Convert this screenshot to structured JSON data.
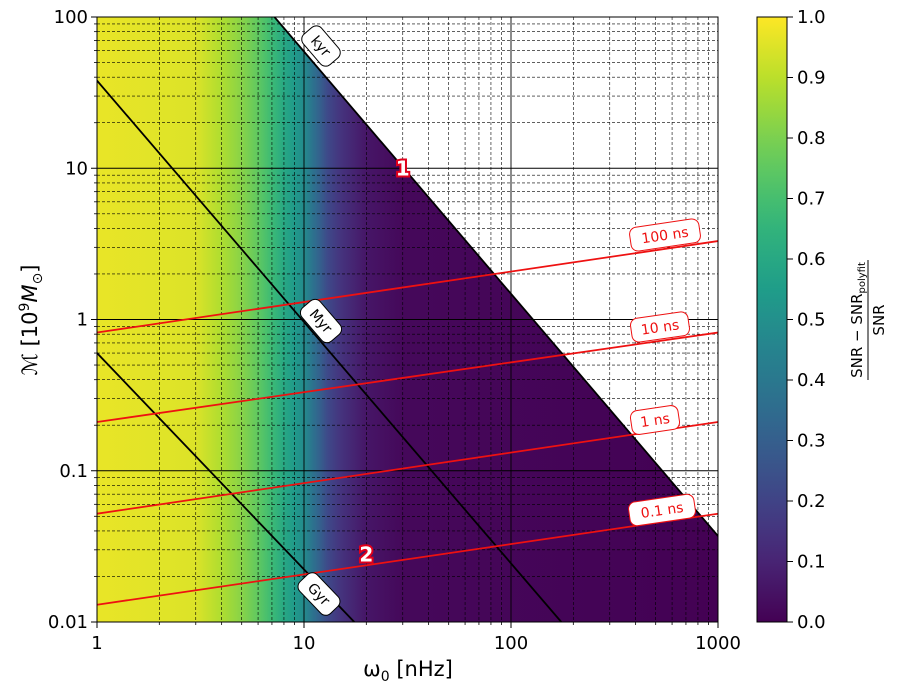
{
  "chart_data": {
    "type": "heatmap",
    "xlabel_parts": [
      "ω",
      "0",
      " [nHz]"
    ],
    "ylabel_parts": [
      "ℳ [10",
      "9",
      "M",
      "⊙",
      "]"
    ],
    "x_scale": "log",
    "y_scale": "log",
    "xlim": [
      1,
      1000
    ],
    "ylim": [
      0.01,
      100
    ],
    "x_ticks": [
      1,
      10,
      100,
      1000
    ],
    "x_tick_labels": [
      "1",
      "10",
      "100",
      "1000"
    ],
    "y_ticks": [
      0.01,
      0.1,
      1,
      10,
      100
    ],
    "y_tick_labels": [
      "0.01",
      "0.1",
      "1",
      "10",
      "100"
    ],
    "grid": true,
    "colorbar": {
      "label_main": "SNR − SNR",
      "label_sub": "polyfit",
      "label_den": "SNR",
      "ticks": [
        0.0,
        0.1,
        0.2,
        0.3,
        0.4,
        0.5,
        0.6,
        0.7,
        0.8,
        0.9,
        1.0
      ],
      "tick_labels": [
        "0.0",
        "0.1",
        "0.2",
        "0.3",
        "0.4",
        "0.5",
        "0.6",
        "0.7",
        "0.8",
        "0.9",
        "1.0"
      ],
      "colormap": "viridis"
    },
    "heatmap_profile": {
      "x": [
        1,
        3,
        4,
        5,
        6,
        7,
        8,
        9,
        10,
        11,
        12,
        13,
        15,
        20,
        30,
        1000
      ],
      "value": [
        0.97,
        0.95,
        0.88,
        0.82,
        0.75,
        0.68,
        0.6,
        0.54,
        0.48,
        0.38,
        0.3,
        0.22,
        0.15,
        0.06,
        0.02,
        0.0
      ]
    },
    "masked_region": "above kyr line (white)",
    "black_lines": [
      {
        "label": "kyr",
        "x": [
          7.2,
          1000
        ],
        "y": [
          100,
          0.037
        ]
      },
      {
        "label": "Myr",
        "x": [
          1,
          175
        ],
        "y": [
          38,
          0.01
        ]
      },
      {
        "label": "Gyr",
        "x": [
          1,
          17.5
        ],
        "y": [
          0.6,
          0.01
        ]
      }
    ],
    "red_lines": [
      {
        "label": "100 ns",
        "x": [
          1,
          1000
        ],
        "y": [
          0.82,
          3.3
        ]
      },
      {
        "label": "10 ns",
        "x": [
          1,
          1000
        ],
        "y": [
          0.21,
          0.82
        ]
      },
      {
        "label": "1 ns",
        "x": [
          1,
          1000
        ],
        "y": [
          0.052,
          0.21
        ]
      },
      {
        "label": "0.1 ns",
        "x": [
          1,
          1000
        ],
        "y": [
          0.013,
          0.052
        ]
      }
    ],
    "markers": [
      {
        "label": "1",
        "x": 30,
        "y": 10
      },
      {
        "label": "2",
        "x": 20,
        "y": 0.028
      }
    ],
    "colors": {
      "black_line": "#000000",
      "red_line": "#ee1111",
      "marker_stroke": "#e0001b"
    }
  }
}
